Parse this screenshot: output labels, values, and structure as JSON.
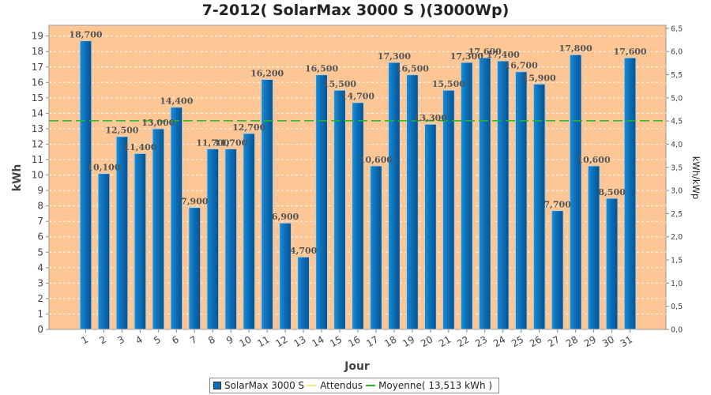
{
  "chart_data": {
    "type": "bar",
    "title": "7-2012( SolarMax 3000 S )(3000Wp)",
    "xlabel": "Jour",
    "ylabel": "kWh",
    "ylabel_right": "kWh/kWp",
    "categories": [
      "1",
      "2",
      "3",
      "4",
      "5",
      "6",
      "7",
      "8",
      "9",
      "10",
      "11",
      "12",
      "13",
      "14",
      "15",
      "16",
      "17",
      "18",
      "19",
      "20",
      "21",
      "22",
      "23",
      "24",
      "25",
      "26",
      "27",
      "28",
      "29",
      "30",
      "31"
    ],
    "series": [
      {
        "name": "SolarMax 3000 S",
        "values": [
          18.7,
          10.1,
          12.5,
          11.4,
          13.0,
          14.4,
          7.9,
          11.7,
          11.7,
          12.7,
          16.2,
          6.9,
          4.7,
          16.5,
          15.5,
          14.7,
          10.6,
          17.3,
          16.5,
          13.3,
          15.5,
          17.3,
          17.6,
          17.4,
          16.7,
          15.9,
          7.7,
          17.8,
          10.6,
          8.5,
          17.6
        ],
        "labels": [
          "18,700",
          "10,100",
          "12,500",
          "11,400",
          "13,000",
          "14,400",
          "7,900",
          "11,700",
          "11,700",
          "12,700",
          "16,200",
          "6,900",
          "4,700",
          "16,500",
          "15,500",
          "14,700",
          "10,600",
          "17,300",
          "16,500",
          "13,300",
          "15,500",
          "17,300",
          "17,600",
          "17,400",
          "16,700",
          "15,900",
          "7,700",
          "17,800",
          "10,600",
          "8,500",
          "17,600"
        ],
        "color": "#0d6fb8"
      }
    ],
    "reference_lines": [
      {
        "name": "Attendus",
        "color": "#f5e86a"
      },
      {
        "name": "Moyenne( 13,513 kWh )",
        "value": 13.513,
        "color": "#22bb22"
      }
    ],
    "ylim": [
      0,
      19.7
    ],
    "yticks": [
      "0",
      "1",
      "2",
      "3",
      "4",
      "5",
      "6",
      "7",
      "8",
      "9",
      "10",
      "11",
      "12",
      "13",
      "14",
      "15",
      "16",
      "17",
      "18",
      "19"
    ],
    "y2lim": [
      0,
      6.5667
    ],
    "y2ticks": [
      "0,0",
      "0,5",
      "1,0",
      "1,5",
      "2,0",
      "2,5",
      "3,0",
      "3,5",
      "4,0",
      "4,5",
      "5,0",
      "5,5",
      "6,0",
      "6,5"
    ],
    "grid": true,
    "legend_position": "bottom",
    "plot_background": "#fcc794"
  }
}
